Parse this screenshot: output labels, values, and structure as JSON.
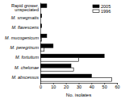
{
  "chart_data": {
    "type": "bar",
    "orientation": "horizontal",
    "categories": [
      "Rapid grower, unspeciated",
      "M. smegmatis",
      "M. flavescens",
      "M. mucogenicum",
      "M. peregrinum",
      "M. fortuitum",
      "M. chelonae",
      "M. abscessus"
    ],
    "series": [
      {
        "name": "2005",
        "color": "#000000",
        "values": [
          5,
          1,
          1,
          5,
          10,
          50,
          24,
          40
        ]
      },
      {
        "name": "1996",
        "color": "#ffffff",
        "values": [
          0,
          0,
          0,
          1,
          3,
          30,
          26,
          56
        ]
      }
    ],
    "x_label": "No. isolates",
    "xlim": [
      0,
      60
    ],
    "xticks": [
      0,
      10,
      20,
      30,
      40,
      50,
      60
    ],
    "legend": "upper right",
    "grid": false
  }
}
